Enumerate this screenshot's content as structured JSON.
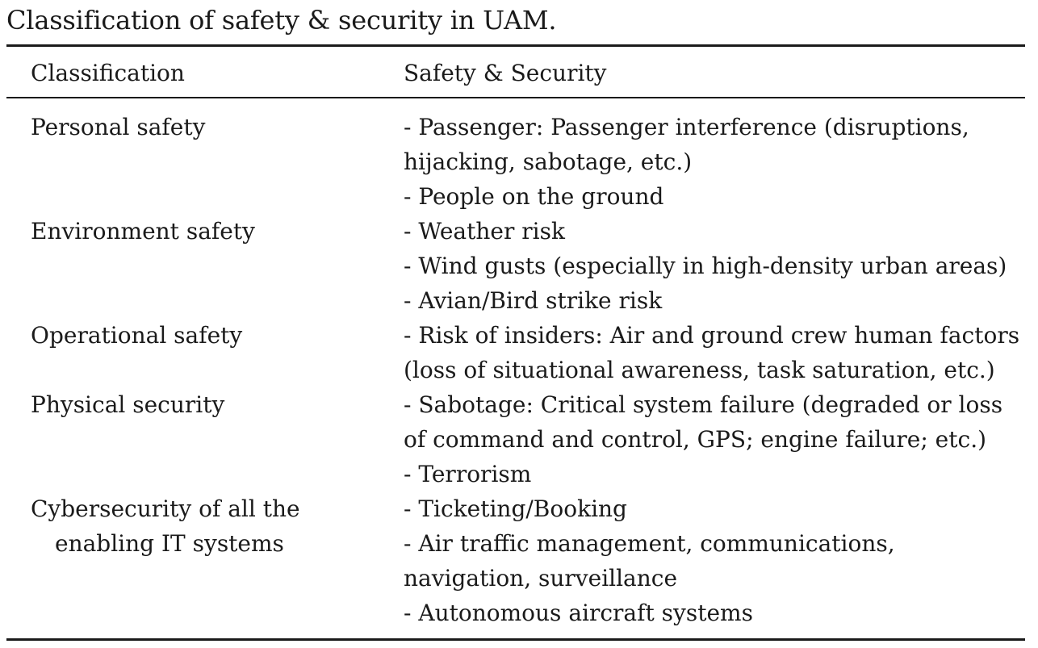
{
  "caption": "Classification of safety & security in UAM.",
  "headers": {
    "col1": "Classification",
    "col2": "Safety & Security"
  },
  "rows": [
    {
      "classification": [
        "Personal safety"
      ],
      "lines": [
        "- Passenger: Passenger interference (disruptions,",
        "hijacking, sabotage, etc.)",
        "- People on the ground"
      ]
    },
    {
      "classification": [
        "Environment safety"
      ],
      "lines": [
        "- Weather risk",
        "- Wind gusts (especially in high-density urban areas)",
        "- Avian/Bird strike risk"
      ]
    },
    {
      "classification": [
        "Operational safety"
      ],
      "lines": [
        "- Risk of insiders: Air and ground crew human factors",
        "(loss of situational awareness, task saturation, etc.)"
      ]
    },
    {
      "classification": [
        "Physical security"
      ],
      "lines": [
        "- Sabotage: Critical system failure (degraded or loss",
        "of command and control, GPS; engine failure; etc.)",
        "- Terrorism"
      ]
    },
    {
      "classification": [
        "Cybersecurity of all the",
        "enabling IT systems"
      ],
      "lines": [
        "- Ticketing/Booking",
        "- Air traffic management, communications,",
        "navigation, surveillance",
        "- Autonomous aircraft systems"
      ]
    }
  ]
}
